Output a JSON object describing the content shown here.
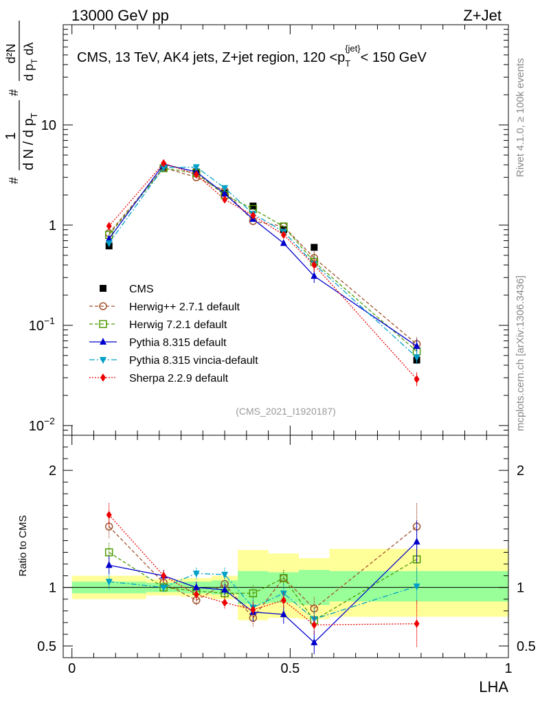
{
  "header": {
    "left": "13000 GeV pp",
    "right": "Z+Jet"
  },
  "side": {
    "rivet": "Rivet 4.1.0, ≥ 100k events",
    "mcplots": "mcplots.cern.ch [arXiv:1306.3436]"
  },
  "chart_data": [
    {
      "type": "line",
      "panel": "main",
      "title": "CMS, 13 TeV, AK4 jets, Z+jet region, 120 <p_T^{jet}< 150 GeV",
      "title_parts": {
        "pre": "CMS, 13 TeV, AK4 jets, Z+jet region, 120 <p",
        "sub": "T",
        "sup": "{jet}",
        "post": "< 150 GeV"
      },
      "ylabel_num": "1",
      "ylabel_den": "d N / d p",
      "ylabel_den_sub": "T",
      "ylabel_rhs_num": "d²N",
      "ylabel_rhs_den": "d p",
      "ylabel_rhs_den_sub": "T",
      "ylabel_rhs_den_post": " dλ",
      "ylabel_hash": "#",
      "yscale": "log",
      "ylim": [
        0.008,
        100
      ],
      "xlim": [
        -0.02,
        1.0
      ],
      "yticks": [
        {
          "v": 10,
          "label": "10"
        },
        {
          "v": 1,
          "label": "1"
        },
        {
          "v": 0.1,
          "label": "10",
          "exp": "−1"
        },
        {
          "v": 0.01,
          "label": "10",
          "exp": "−2"
        }
      ],
      "watermark": "(CMS_2021_I1920187)",
      "x": [
        0.085,
        0.21,
        0.285,
        0.35,
        0.415,
        0.485,
        0.555,
        0.79
      ],
      "series": [
        {
          "name": "CMS",
          "style": "data",
          "color": "#000000",
          "marker": "square",
          "values": [
            0.62,
            3.7,
            3.4,
            2.1,
            1.55,
            0.9,
            0.6,
            0.045
          ]
        },
        {
          "name": "Herwig++ 2.7.1 default",
          "style": "mc",
          "color": "#a0522d",
          "marker": "circle-open",
          "dash": "5,3",
          "values": [
            0.83,
            3.75,
            3.0,
            2.2,
            1.1,
            0.97,
            0.47,
            0.065
          ]
        },
        {
          "name": "Herwig 7.2.1 default",
          "style": "mc",
          "color": "#4e9a06",
          "marker": "square-open",
          "dash": "5,3",
          "values": [
            0.8,
            3.7,
            3.3,
            2.0,
            1.45,
            0.97,
            0.43,
            0.055
          ]
        },
        {
          "name": "Pythia 8.315 default",
          "style": "mc",
          "color": "#0000cc",
          "marker": "triangle-up",
          "dash": "",
          "values": [
            0.73,
            4.05,
            3.4,
            2.05,
            1.15,
            0.66,
            0.31,
            0.062
          ]
        },
        {
          "name": "Pythia 8.315 vincia-default",
          "style": "mc",
          "color": "#00a0c8",
          "marker": "triangle-down",
          "dash": "8,3,2,3",
          "values": [
            0.66,
            3.75,
            3.8,
            2.35,
            1.3,
            0.86,
            0.41,
            0.048
          ]
        },
        {
          "name": "Sherpa 2.2.9 default",
          "style": "mc",
          "color": "#ee0000",
          "marker": "diamond",
          "dash": "2,2",
          "values": [
            0.98,
            4.15,
            3.2,
            1.8,
            1.25,
            0.8,
            0.4,
            0.029
          ]
        }
      ]
    },
    {
      "type": "line",
      "panel": "ratio",
      "ylabel": "Ratio to CMS",
      "xlabel": "LHA",
      "ylim": [
        0.4,
        2.3
      ],
      "xlim": [
        -0.02,
        1.0
      ],
      "yticks": [
        0.5,
        1,
        2
      ],
      "xticks": [
        {
          "v": 0,
          "label": "0"
        },
        {
          "v": 0.5,
          "label": "0.5"
        },
        {
          "v": 1,
          "label": "1"
        }
      ],
      "bins": [
        {
          "lo": 0.0,
          "hi": 0.17,
          "g_lo": 0.95,
          "g_hi": 1.05,
          "y_lo": 0.9,
          "y_hi": 1.1
        },
        {
          "lo": 0.17,
          "hi": 0.25,
          "g_lo": 0.96,
          "g_hi": 1.04,
          "y_lo": 0.93,
          "y_hi": 1.07
        },
        {
          "lo": 0.25,
          "hi": 0.32,
          "g_lo": 0.95,
          "g_hi": 1.05,
          "y_lo": 0.92,
          "y_hi": 1.08
        },
        {
          "lo": 0.32,
          "hi": 0.38,
          "g_lo": 0.94,
          "g_hi": 1.06,
          "y_lo": 0.9,
          "y_hi": 1.1
        },
        {
          "lo": 0.38,
          "hi": 0.45,
          "g_lo": 0.86,
          "g_hi": 1.14,
          "y_lo": 0.72,
          "y_hi": 1.32
        },
        {
          "lo": 0.45,
          "hi": 0.52,
          "g_lo": 0.87,
          "g_hi": 1.13,
          "y_lo": 0.74,
          "y_hi": 1.29
        },
        {
          "lo": 0.52,
          "hi": 0.59,
          "g_lo": 0.85,
          "g_hi": 1.15,
          "y_lo": 0.73,
          "y_hi": 1.25
        },
        {
          "lo": 0.59,
          "hi": 1.0,
          "g_lo": 0.88,
          "g_hi": 1.14,
          "y_lo": 0.75,
          "y_hi": 1.33
        }
      ],
      "x": [
        0.085,
        0.21,
        0.285,
        0.35,
        0.415,
        0.485,
        0.555,
        0.79
      ],
      "series": [
        {
          "name": "Herwig++ 2.7.1 default",
          "color": "#a0522d",
          "marker": "circle-open",
          "dash": "5,3",
          "values": [
            1.52,
            1.04,
            0.89,
            1.03,
            0.74,
            1.08,
            0.82,
            1.52
          ],
          "errors": [
            0.1,
            0.04,
            0.04,
            0.05,
            0.08,
            0.07,
            0.1,
            0.2
          ]
        },
        {
          "name": "Herwig 7.2.1 default",
          "color": "#4e9a06",
          "marker": "square-open",
          "dash": "5,3",
          "values": [
            1.3,
            1.0,
            0.97,
            0.95,
            0.95,
            1.08,
            0.72,
            1.24
          ],
          "errors": [
            0.08,
            0.03,
            0.04,
            0.05,
            0.07,
            0.07,
            0.08,
            0.18
          ]
        },
        {
          "name": "Pythia 8.315 default",
          "color": "#0000cc",
          "marker": "triangle-up",
          "dash": "",
          "values": [
            1.19,
            1.1,
            1.0,
            0.98,
            0.79,
            0.77,
            0.53,
            1.39
          ],
          "errors": [
            0.08,
            0.05,
            0.05,
            0.05,
            0.08,
            0.08,
            0.1,
            0.18
          ]
        },
        {
          "name": "Pythia 8.315 vincia-default",
          "color": "#00a0c8",
          "marker": "triangle-down",
          "dash": "8,3,2,3",
          "values": [
            1.05,
            1.0,
            1.12,
            1.11,
            0.83,
            0.95,
            0.73,
            1.01
          ],
          "errors": [
            0.07,
            0.04,
            0.05,
            0.06,
            0.08,
            0.08,
            0.09,
            0.16
          ]
        },
        {
          "name": "Sherpa 2.2.9 default",
          "color": "#ee0000",
          "marker": "diamond",
          "dash": "2,2",
          "values": [
            1.62,
            1.1,
            0.94,
            0.87,
            0.81,
            0.89,
            0.68,
            0.69
          ],
          "errors": [
            0.1,
            0.05,
            0.05,
            0.05,
            0.07,
            0.07,
            0.08,
            0.2
          ]
        }
      ]
    }
  ]
}
